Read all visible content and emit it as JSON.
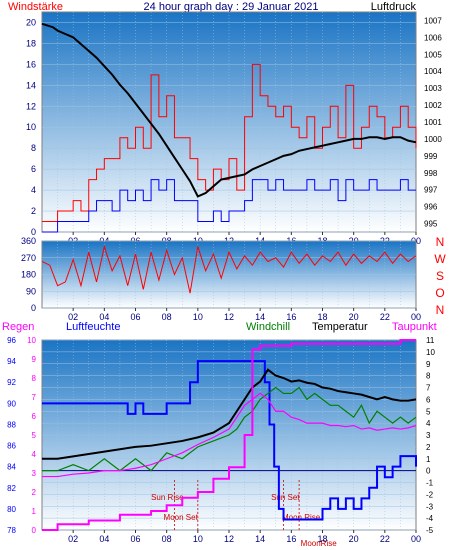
{
  "title": "24 hour graph day : 29 Januar 2021",
  "colors": {
    "background": "#ffffff",
    "panel_top": "#1a74c4",
    "panel_bottom": "#ffffff",
    "wind_speed": "#ff0000",
    "wind_avg": "#0000ff",
    "pressure": "#000000",
    "humidity": "#0000ff",
    "windchill": "#008000",
    "temperature": "#000000",
    "dewpoint": "#ff00ff",
    "rain": "#ff00ff",
    "sun_moon": "#cc0000",
    "axis_text_blue": "#000080",
    "axis_text_red": "#ff0000"
  },
  "chart_data": [
    {
      "type": "line",
      "name": "wind-pressure",
      "labels": {
        "left": "Windstärke",
        "right": "Luftdruck"
      },
      "x_tick_labels": [
        "02",
        "04",
        "06",
        "08",
        "10",
        "12",
        "14",
        "16",
        "18",
        "20",
        "22",
        "00"
      ],
      "x_range_hours": [
        0,
        24
      ],
      "y_left_ticks": [
        "0",
        "2",
        "4",
        "6",
        "8",
        "10",
        "12",
        "14",
        "16",
        "18",
        "20"
      ],
      "y_left_range": [
        0,
        21
      ],
      "y_right_ticks": [
        "995",
        "996",
        "997",
        "998",
        "999",
        "1000",
        "1001",
        "1002",
        "1003",
        "1004",
        "1005",
        "1006",
        "1007"
      ],
      "y_right_range": [
        994.5,
        1007.5
      ],
      "grid": true,
      "series": [
        {
          "key": "pressure",
          "axis": "right",
          "x": [
            0,
            0.7,
            1,
            1.5,
            2,
            2.5,
            3,
            3.5,
            4,
            4.5,
            5,
            5.5,
            6,
            6.5,
            7,
            7.5,
            8,
            8.5,
            9,
            9.5,
            10,
            10.5,
            11,
            11.5,
            12,
            12.5,
            13,
            13.5,
            14,
            14.5,
            15,
            15.5,
            16,
            16.5,
            17,
            17.5,
            18,
            18.5,
            19,
            19.5,
            20,
            20.5,
            21,
            21.5,
            22,
            22.5,
            23,
            23.5,
            24
          ],
          "y": [
            1006.8,
            1006.6,
            1006.4,
            1006.2,
            1006.0,
            1005.6,
            1005.2,
            1004.8,
            1004.3,
            1003.8,
            1003.2,
            1002.7,
            1002.1,
            1001.5,
            1000.9,
            1000.3,
            999.6,
            998.9,
            998.2,
            997.5,
            996.6,
            996.8,
            997.2,
            997.6,
            997.7,
            997.8,
            997.9,
            998.2,
            998.4,
            998.6,
            998.8,
            999.0,
            999.1,
            999.3,
            999.4,
            999.5,
            999.6,
            999.7,
            999.8,
            999.9,
            1000.0,
            1000.0,
            1000.1,
            1000.1,
            1000.0,
            1000.1,
            1000.1,
            999.9,
            999.8
          ]
        },
        {
          "key": "wind_speed",
          "axis": "left",
          "x": [
            0,
            0.5,
            1,
            1.5,
            2,
            2.5,
            3,
            3.5,
            4,
            4.5,
            5,
            5.5,
            6,
            6.5,
            7,
            7.5,
            8,
            8.5,
            9,
            9.5,
            10,
            10.5,
            11,
            11.5,
            12,
            12.5,
            13,
            13.5,
            14,
            14.5,
            15,
            15.5,
            16,
            16.5,
            17,
            17.5,
            18,
            18.5,
            19,
            19.5,
            20,
            20.5,
            21,
            21.5,
            22,
            22.5,
            23,
            23.5,
            24
          ],
          "y": [
            1,
            1,
            2,
            2,
            3,
            2,
            5,
            6,
            7,
            7,
            9,
            8,
            10,
            8,
            15,
            11,
            13,
            9,
            9,
            7,
            5,
            4,
            6,
            5,
            7,
            4,
            11,
            16,
            13,
            12,
            11,
            12,
            10,
            9,
            11,
            8,
            10,
            12,
            9,
            14,
            8,
            10,
            12,
            11,
            9,
            10,
            12,
            10,
            8
          ]
        },
        {
          "key": "wind_avg",
          "axis": "left",
          "x": [
            0,
            0.5,
            1,
            1.5,
            2,
            2.5,
            3,
            3.5,
            4,
            4.5,
            5,
            5.5,
            6,
            6.5,
            7,
            7.5,
            8,
            8.5,
            9,
            9.5,
            10,
            10.5,
            11,
            11.5,
            12,
            12.5,
            13,
            13.5,
            14,
            14.5,
            15,
            15.5,
            16,
            16.5,
            17,
            17.5,
            18,
            18.5,
            19,
            19.5,
            20,
            20.5,
            21,
            21.5,
            22,
            22.5,
            23,
            23.5,
            24
          ],
          "y": [
            0,
            0,
            1,
            1,
            1,
            1,
            2,
            3,
            3,
            2,
            4,
            3,
            4,
            3,
            5,
            4,
            5,
            3,
            3,
            3,
            1,
            1,
            2,
            1,
            2,
            2,
            3,
            5,
            5,
            4,
            5,
            4,
            4,
            4,
            5,
            4,
            4,
            5,
            3,
            5,
            4,
            4,
            5,
            4,
            4,
            4,
            5,
            4,
            4
          ]
        }
      ]
    },
    {
      "type": "line",
      "name": "wind-direction",
      "x_tick_labels": [
        "02",
        "04",
        "06",
        "08",
        "10",
        "12",
        "14",
        "16",
        "18",
        "20",
        "22",
        "00"
      ],
      "x_range_hours": [
        0,
        24
      ],
      "y_ticks": [
        "0",
        "90",
        "180",
        "270",
        "360"
      ],
      "y_range": [
        0,
        360
      ],
      "right_labels": [
        "N",
        "W",
        "S",
        "O",
        "N"
      ],
      "series": [
        {
          "key": "wind_direction",
          "x": [
            0,
            0.5,
            1,
            1.5,
            2,
            2.5,
            3,
            3.5,
            4,
            4.5,
            5,
            5.5,
            6,
            6.5,
            7,
            7.5,
            8,
            8.5,
            9,
            9.5,
            10,
            10.5,
            11,
            11.5,
            12,
            12.5,
            13,
            13.5,
            14,
            14.5,
            15,
            15.5,
            16,
            16.5,
            17,
            17.5,
            18,
            18.5,
            19,
            19.5,
            20,
            20.5,
            21,
            21.5,
            22,
            22.5,
            23,
            23.5,
            24
          ],
          "y": [
            250,
            230,
            120,
            140,
            260,
            120,
            300,
            140,
            330,
            200,
            280,
            120,
            290,
            100,
            300,
            150,
            310,
            180,
            270,
            80,
            330,
            200,
            290,
            160,
            300,
            210,
            280,
            230,
            300,
            250,
            270,
            220,
            300,
            240,
            290,
            230,
            280,
            250,
            300,
            230,
            290,
            240,
            280,
            250,
            300,
            240,
            290,
            250,
            280
          ]
        }
      ]
    },
    {
      "type": "line",
      "name": "temperature-humidity",
      "labels": {
        "rain": "Regen",
        "humidity": "Luftfeuchte",
        "windchill": "Windchill",
        "temperature": "Temperatur",
        "dewpoint": "Taupunkt"
      },
      "x_tick_labels": [
        "02",
        "04",
        "06",
        "08",
        "10",
        "12",
        "14",
        "16",
        "18",
        "20",
        "22",
        "00"
      ],
      "x_range_hours": [
        0,
        24
      ],
      "y_humidity_ticks": [
        "78",
        "80",
        "82",
        "84",
        "86",
        "88",
        "90",
        "92",
        "94",
        "96"
      ],
      "y_humidity_range": [
        78,
        96
      ],
      "y_rain_ticks": [
        "0",
        "1",
        "2",
        "3",
        "4",
        "5",
        "6",
        "7",
        "8",
        "9",
        "10"
      ],
      "y_rain_range": [
        0,
        10
      ],
      "y_temp_ticks": [
        "11",
        "10",
        "9",
        "8",
        "7",
        "6",
        "5",
        "4",
        "3",
        "2",
        "1",
        "0",
        "-1",
        "-2",
        "-3",
        "-4",
        "-5"
      ],
      "y_temp_range": [
        -5,
        11
      ],
      "annotations": [
        "Sun Rise",
        "Moon Set",
        "Sun Set",
        "Moon Rise",
        "MoonRise"
      ],
      "series": [
        {
          "key": "humidity",
          "axis": "humidity",
          "x": [
            0,
            1,
            2,
            3,
            4,
            5,
            5.5,
            6,
            6.5,
            7,
            8,
            9,
            9.5,
            10,
            11,
            12,
            13,
            14,
            14.3,
            14.6,
            14.9,
            15.2,
            15.5,
            16,
            17,
            17.5,
            18,
            18.5,
            19,
            19.5,
            20,
            20.5,
            21,
            21.5,
            22,
            22.5,
            23,
            23.5,
            24
          ],
          "y": [
            90,
            90,
            90,
            90,
            90,
            90,
            89,
            90,
            89,
            89,
            90,
            90,
            92,
            94,
            94,
            94,
            94,
            94,
            92,
            88,
            84,
            80,
            79,
            79,
            79,
            79,
            80,
            81,
            80,
            81,
            80,
            81,
            82,
            84,
            83,
            84,
            85,
            85,
            84
          ]
        },
        {
          "key": "temperature",
          "axis": "temp",
          "x": [
            0,
            1,
            2,
            3,
            4,
            5,
            6,
            7,
            8,
            9,
            10,
            11,
            12,
            12.5,
            13,
            13.5,
            14,
            14.5,
            15,
            15.5,
            16,
            16.5,
            17,
            17.5,
            18,
            18.5,
            19,
            19.5,
            20,
            20.5,
            21,
            21.5,
            22,
            22.5,
            23,
            23.5,
            24
          ],
          "y": [
            1,
            1,
            1.2,
            1.4,
            1.6,
            1.8,
            2.0,
            2.1,
            2.3,
            2.5,
            2.8,
            3.2,
            4.0,
            5.0,
            6.0,
            7.0,
            7.5,
            8.5,
            8.0,
            7.8,
            7.5,
            7.6,
            7.4,
            7.3,
            7.0,
            6.9,
            6.7,
            6.6,
            6.5,
            6.4,
            6.2,
            6.0,
            6.2,
            6.0,
            5.9,
            5.9,
            6.0
          ]
        },
        {
          "key": "windchill",
          "axis": "temp",
          "x": [
            0,
            1,
            2,
            3,
            4,
            5,
            6,
            7,
            8,
            9,
            10,
            11,
            12,
            12.5,
            13,
            13.5,
            14,
            14.5,
            15,
            15.5,
            16,
            16.5,
            17,
            17.5,
            18,
            18.5,
            19,
            19.5,
            20,
            20.5,
            21,
            21.5,
            22,
            22.5,
            23,
            23.5,
            24
          ],
          "y": [
            0,
            0,
            0.5,
            0,
            1,
            0,
            1,
            0,
            1.5,
            1,
            2,
            2.5,
            3,
            3.5,
            4.5,
            5,
            6,
            6.5,
            7,
            6.5,
            6.5,
            7,
            6,
            6.5,
            6,
            5.5,
            5.5,
            5,
            4.5,
            5.5,
            4,
            5,
            4.5,
            4,
            4.5,
            4,
            4.5
          ]
        },
        {
          "key": "dewpoint",
          "axis": "temp",
          "x": [
            0,
            1,
            2,
            3,
            4,
            5,
            6,
            7,
            8,
            9,
            10,
            11,
            12,
            12.5,
            13,
            13.5,
            14,
            14.5,
            15,
            15.5,
            16,
            16.5,
            17,
            17.5,
            18,
            18.5,
            19,
            19.5,
            20,
            20.5,
            21,
            21.5,
            22,
            22.5,
            23,
            23.5,
            24
          ],
          "y": [
            -0.5,
            -0.5,
            -0.3,
            -0.2,
            0,
            0,
            0.2,
            0.5,
            1,
            1.5,
            2.2,
            2.8,
            3.5,
            4.5,
            5.5,
            6,
            6.5,
            6,
            5,
            5,
            4.5,
            4.3,
            4,
            4,
            4,
            3.8,
            3.8,
            3.7,
            3.8,
            3.5,
            3.6,
            3.4,
            3.5,
            3.6,
            3.5,
            3.6,
            3.8
          ]
        },
        {
          "key": "rain",
          "axis": "rain",
          "step": true,
          "x": [
            0,
            1,
            3,
            5,
            7,
            8,
            9,
            10,
            11,
            12,
            13,
            13.5,
            14,
            16,
            18,
            20,
            22,
            23,
            24
          ],
          "y": [
            0,
            0.3,
            0.5,
            0.8,
            1.0,
            1.3,
            1.7,
            2.0,
            2.7,
            3.3,
            5.0,
            9.5,
            9.7,
            9.8,
            9.8,
            9.8,
            9.8,
            10.0,
            10.0
          ]
        }
      ]
    }
  ]
}
